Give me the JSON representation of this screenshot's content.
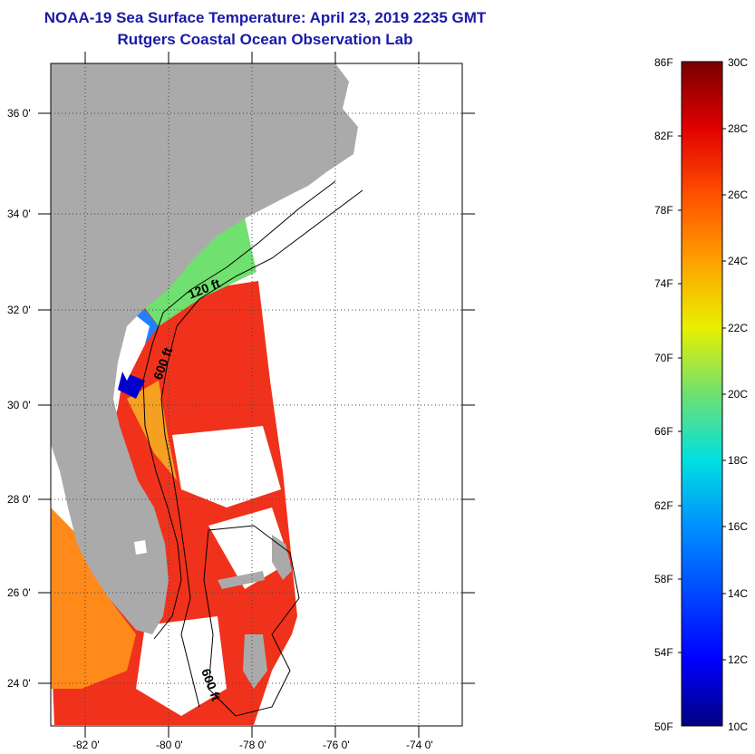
{
  "title_line1": "NOAA-19 Sea Surface Temperature:  April 23, 2019 2235 GMT",
  "title_line2": "Rutgers Coastal Ocean Observation Lab",
  "lat_ticks": [
    "36 0'",
    "34 0'",
    "32 0'",
    "30 0'",
    "28 0'",
    "26 0'",
    "24 0'"
  ],
  "lon_ticks": [
    "-82 0'",
    "-80 0'",
    "-78 0'",
    "-76 0'",
    "-74 0'"
  ],
  "contours": [
    "120 ft",
    "600 ft",
    "600 ft"
  ],
  "colorbar": {
    "fahrenheit": [
      "86F",
      "82F",
      "78F",
      "74F",
      "70F",
      "66F",
      "62F",
      "58F",
      "54F",
      "50F"
    ],
    "celsius": [
      "30C",
      "28C",
      "26C",
      "24C",
      "22C",
      "20C",
      "18C",
      "16C",
      "14C",
      "12C",
      "10C"
    ]
  },
  "colors": {
    "title": "#1a1aa8",
    "land": "#aaaaaa",
    "warm": "#f0321c",
    "cloud": "#ffffff"
  }
}
